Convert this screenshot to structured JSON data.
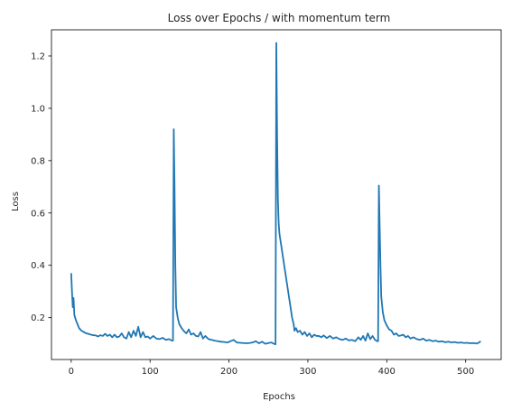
{
  "chart_data": {
    "type": "line",
    "title": "Loss over Epochs / with momentum term",
    "xlabel": "Epochs",
    "ylabel": "Loss",
    "xlim": [
      -25,
      545
    ],
    "ylim": [
      0.04,
      1.3
    ],
    "xticks": [
      0,
      100,
      200,
      300,
      400,
      500
    ],
    "yticks": [
      0.2,
      0.4,
      0.6,
      0.8,
      1.0,
      1.2
    ],
    "ytick_labels": [
      "0.2",
      "0.4",
      "0.6",
      "0.8",
      "1.0",
      "1.2"
    ],
    "grid": false,
    "colors": {
      "line": "#1f77b4",
      "axis": "#000000",
      "text": "#262626"
    },
    "series": [
      {
        "values_xy": [
          [
            0,
            0.37
          ],
          [
            1,
            0.3
          ],
          [
            2,
            0.24
          ],
          [
            3,
            0.275
          ],
          [
            4,
            0.21
          ],
          [
            6,
            0.19
          ],
          [
            8,
            0.175
          ],
          [
            10,
            0.16
          ],
          [
            13,
            0.15
          ],
          [
            16,
            0.145
          ],
          [
            19,
            0.14
          ],
          [
            22,
            0.138
          ],
          [
            25,
            0.135
          ],
          [
            28,
            0.133
          ],
          [
            31,
            0.132
          ],
          [
            34,
            0.128
          ],
          [
            37,
            0.133
          ],
          [
            40,
            0.13
          ],
          [
            43,
            0.138
          ],
          [
            46,
            0.13
          ],
          [
            49,
            0.135
          ],
          [
            52,
            0.125
          ],
          [
            55,
            0.135
          ],
          [
            58,
            0.125
          ],
          [
            61,
            0.128
          ],
          [
            64,
            0.14
          ],
          [
            67,
            0.125
          ],
          [
            70,
            0.12
          ],
          [
            73,
            0.145
          ],
          [
            76,
            0.125
          ],
          [
            79,
            0.15
          ],
          [
            82,
            0.13
          ],
          [
            85,
            0.165
          ],
          [
            88,
            0.125
          ],
          [
            91,
            0.145
          ],
          [
            94,
            0.125
          ],
          [
            97,
            0.128
          ],
          [
            100,
            0.12
          ],
          [
            104,
            0.13
          ],
          [
            108,
            0.12
          ],
          [
            112,
            0.118
          ],
          [
            116,
            0.123
          ],
          [
            120,
            0.115
          ],
          [
            124,
            0.118
          ],
          [
            127,
            0.113
          ],
          [
            129,
            0.112
          ],
          [
            130,
            0.92
          ],
          [
            131,
            0.7
          ],
          [
            132,
            0.4
          ],
          [
            133,
            0.24
          ],
          [
            135,
            0.2
          ],
          [
            137,
            0.175
          ],
          [
            140,
            0.16
          ],
          [
            143,
            0.148
          ],
          [
            146,
            0.14
          ],
          [
            149,
            0.155
          ],
          [
            152,
            0.135
          ],
          [
            155,
            0.14
          ],
          [
            158,
            0.13
          ],
          [
            161,
            0.128
          ],
          [
            164,
            0.145
          ],
          [
            167,
            0.12
          ],
          [
            170,
            0.13
          ],
          [
            174,
            0.118
          ],
          [
            178,
            0.115
          ],
          [
            182,
            0.112
          ],
          [
            186,
            0.11
          ],
          [
            190,
            0.108
          ],
          [
            194,
            0.107
          ],
          [
            198,
            0.105
          ],
          [
            202,
            0.11
          ],
          [
            206,
            0.115
          ],
          [
            210,
            0.105
          ],
          [
            214,
            0.104
          ],
          [
            218,
            0.103
          ],
          [
            222,
            0.102
          ],
          [
            226,
            0.103
          ],
          [
            230,
            0.105
          ],
          [
            234,
            0.11
          ],
          [
            238,
            0.102
          ],
          [
            242,
            0.108
          ],
          [
            246,
            0.1
          ],
          [
            250,
            0.103
          ],
          [
            254,
            0.105
          ],
          [
            257,
            0.1
          ],
          [
            259,
            0.098
          ],
          [
            260,
            1.25
          ],
          [
            261,
            0.9
          ],
          [
            262,
            0.65
          ],
          [
            263,
            0.56
          ],
          [
            264,
            0.52
          ],
          [
            266,
            0.48
          ],
          [
            268,
            0.44
          ],
          [
            270,
            0.4
          ],
          [
            272,
            0.36
          ],
          [
            274,
            0.32
          ],
          [
            276,
            0.28
          ],
          [
            278,
            0.24
          ],
          [
            280,
            0.2
          ],
          [
            282,
            0.175
          ],
          [
            283,
            0.15
          ],
          [
            285,
            0.16
          ],
          [
            287,
            0.145
          ],
          [
            290,
            0.15
          ],
          [
            293,
            0.135
          ],
          [
            296,
            0.145
          ],
          [
            299,
            0.13
          ],
          [
            302,
            0.14
          ],
          [
            305,
            0.125
          ],
          [
            308,
            0.135
          ],
          [
            311,
            0.13
          ],
          [
            314,
            0.13
          ],
          [
            317,
            0.125
          ],
          [
            320,
            0.132
          ],
          [
            324,
            0.122
          ],
          [
            328,
            0.13
          ],
          [
            332,
            0.12
          ],
          [
            336,
            0.125
          ],
          [
            340,
            0.118
          ],
          [
            344,
            0.115
          ],
          [
            348,
            0.12
          ],
          [
            352,
            0.113
          ],
          [
            356,
            0.115
          ],
          [
            360,
            0.11
          ],
          [
            364,
            0.125
          ],
          [
            367,
            0.115
          ],
          [
            370,
            0.13
          ],
          [
            373,
            0.112
          ],
          [
            376,
            0.14
          ],
          [
            379,
            0.118
          ],
          [
            382,
            0.13
          ],
          [
            385,
            0.115
          ],
          [
            388,
            0.11
          ],
          [
            389,
            0.11
          ],
          [
            390,
            0.705
          ],
          [
            391,
            0.55
          ],
          [
            392,
            0.4
          ],
          [
            393,
            0.28
          ],
          [
            395,
            0.22
          ],
          [
            397,
            0.19
          ],
          [
            400,
            0.17
          ],
          [
            403,
            0.155
          ],
          [
            406,
            0.15
          ],
          [
            409,
            0.135
          ],
          [
            412,
            0.14
          ],
          [
            415,
            0.13
          ],
          [
            418,
            0.132
          ],
          [
            421,
            0.135
          ],
          [
            424,
            0.125
          ],
          [
            427,
            0.13
          ],
          [
            430,
            0.12
          ],
          [
            434,
            0.125
          ],
          [
            438,
            0.118
          ],
          [
            442,
            0.115
          ],
          [
            446,
            0.12
          ],
          [
            450,
            0.112
          ],
          [
            454,
            0.115
          ],
          [
            458,
            0.11
          ],
          [
            462,
            0.112
          ],
          [
            466,
            0.108
          ],
          [
            470,
            0.11
          ],
          [
            474,
            0.106
          ],
          [
            478,
            0.108
          ],
          [
            482,
            0.105
          ],
          [
            486,
            0.107
          ],
          [
            490,
            0.104
          ],
          [
            494,
            0.105
          ],
          [
            498,
            0.103
          ],
          [
            502,
            0.104
          ],
          [
            506,
            0.102
          ],
          [
            510,
            0.103
          ],
          [
            514,
            0.101
          ],
          [
            517,
            0.105
          ],
          [
            519,
            0.11
          ]
        ]
      }
    ]
  }
}
